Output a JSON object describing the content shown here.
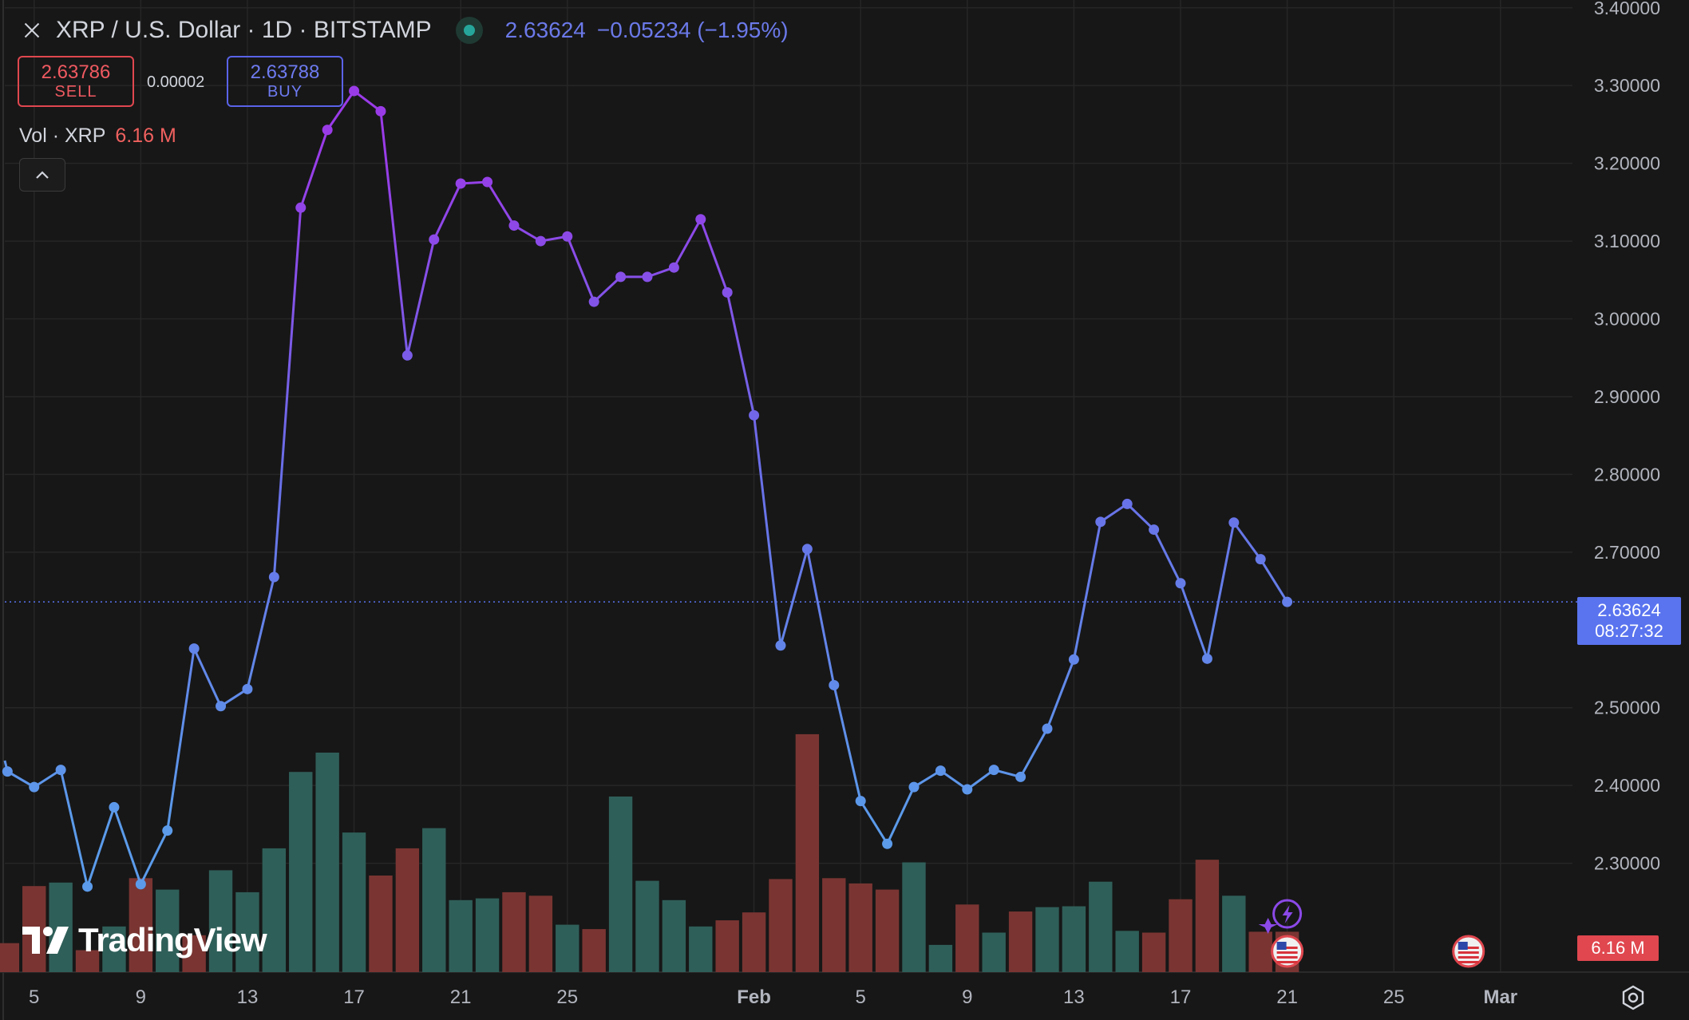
{
  "header": {
    "symbol": "XRP / U.S. Dollar · 1D · BITSTAMP",
    "last_price": "2.63624",
    "change": "−0.05234 (−1.95%)"
  },
  "trade": {
    "sell_price": "2.63786",
    "sell_label": "SELL",
    "spread": "0.00002",
    "buy_price": "2.63788",
    "buy_label": "BUY"
  },
  "volume_legend": {
    "label": "Vol · XRP",
    "value": "6.16 M"
  },
  "price_badge": {
    "price": "2.63624",
    "countdown": "08:27:32"
  },
  "volume_badge": "6.16 M",
  "brand": "TradingView",
  "colors": {
    "line_low": "#5b9bea",
    "line_mid": "#6a6ee8",
    "line_high": "#9a3be8",
    "volume_up": "#2f5f59",
    "volume_down": "#7a3532",
    "accent": "#5a74ef"
  },
  "chart_data": {
    "type": "line",
    "title": "",
    "xlabel": "",
    "ylabel": "",
    "ylim": [
      2.16,
      3.41
    ],
    "y_ticks": [
      "3.40000",
      "3.30000",
      "3.20000",
      "3.10000",
      "3.00000",
      "2.90000",
      "2.80000",
      "2.70000",
      "2.50000",
      "2.40000",
      "2.30000"
    ],
    "y_tick_values": [
      3.4,
      3.3,
      3.2,
      3.1,
      3.0,
      2.9,
      2.8,
      2.7,
      2.5,
      2.4,
      2.3
    ],
    "x_ticks": [
      "5",
      "9",
      "13",
      "17",
      "21",
      "25",
      "Feb",
      "5",
      "9",
      "13",
      "17",
      "21",
      "25",
      "Mar"
    ],
    "x_tick_days": [
      5,
      9,
      13,
      17,
      21,
      25,
      32,
      36,
      40,
      44,
      48,
      52,
      56,
      60
    ],
    "x_range_days": [
      3.9,
      62.7
    ],
    "dates": [
      "2025-01-04",
      "2025-01-05",
      "2025-01-06",
      "2025-01-07",
      "2025-01-08",
      "2025-01-09",
      "2025-01-10",
      "2025-01-11",
      "2025-01-12",
      "2025-01-13",
      "2025-01-14",
      "2025-01-15",
      "2025-01-16",
      "2025-01-17",
      "2025-01-18",
      "2025-01-19",
      "2025-01-20",
      "2025-01-21",
      "2025-01-22",
      "2025-01-23",
      "2025-01-24",
      "2025-01-25",
      "2025-01-26",
      "2025-01-27",
      "2025-01-28",
      "2025-01-29",
      "2025-01-30",
      "2025-01-31",
      "2025-02-01",
      "2025-02-02",
      "2025-02-03",
      "2025-02-04",
      "2025-02-05",
      "2025-02-06",
      "2025-02-07",
      "2025-02-08",
      "2025-02-09",
      "2025-02-10",
      "2025-02-11",
      "2025-02-12",
      "2025-02-13",
      "2025-02-14",
      "2025-02-15",
      "2025-02-16",
      "2025-02-17",
      "2025-02-18",
      "2025-02-19",
      "2025-02-20",
      "2025-02-21"
    ],
    "series": [
      {
        "values": [
          2.418,
          2.398,
          2.42,
          2.27,
          2.372,
          2.273,
          2.342,
          2.576,
          2.502,
          2.524,
          2.668,
          3.143,
          3.243,
          3.293,
          3.267,
          2.953,
          3.102,
          3.174,
          3.176,
          3.12,
          3.1,
          3.106,
          3.022,
          3.054,
          3.054,
          3.066,
          3.128,
          3.034,
          2.876,
          2.58,
          2.704,
          2.529,
          2.38,
          2.325,
          2.398,
          2.419,
          2.395,
          2.42,
          2.411,
          2.473,
          2.562,
          2.739,
          2.762,
          2.729,
          2.66,
          2.563,
          2.738,
          2.691,
          2.636
        ]
      }
    ],
    "volume": {
      "label": "Vol · XRP",
      "values": [
        33,
        98,
        102,
        25,
        52,
        107,
        94,
        42,
        116,
        91,
        141,
        228,
        250,
        159,
        110,
        141,
        164,
        82,
        84,
        91,
        87,
        54,
        49,
        200,
        104,
        82,
        52,
        59,
        68,
        106,
        271,
        107,
        101,
        94,
        125,
        31,
        77,
        45,
        69,
        74,
        75,
        103,
        47,
        45,
        83,
        128,
        87,
        46,
        46
      ],
      "direction": [
        "down",
        "down",
        "up",
        "down",
        "up",
        "down",
        "up",
        "down",
        "up",
        "up",
        "up",
        "up",
        "up",
        "up",
        "down",
        "down",
        "up",
        "up",
        "up",
        "down",
        "down",
        "up",
        "down",
        "up",
        "up",
        "up",
        "up",
        "down",
        "down",
        "down",
        "down",
        "down",
        "down",
        "down",
        "up",
        "up",
        "down",
        "up",
        "down",
        "up",
        "up",
        "up",
        "up",
        "down",
        "down",
        "down",
        "up",
        "down",
        "down"
      ]
    }
  }
}
